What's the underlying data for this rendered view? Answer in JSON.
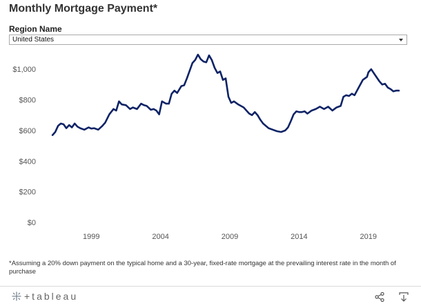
{
  "title": "Monthly Mortgage Payment*",
  "filter": {
    "label": "Region Name",
    "value": "United States"
  },
  "chart_data": {
    "type": "line",
    "title": "Monthly Mortgage Payment*",
    "xlabel": "",
    "ylabel": "",
    "y_ticks": [
      0,
      200,
      400,
      600,
      800,
      1000
    ],
    "y_tick_labels": [
      "$0",
      "$200",
      "$400",
      "$600",
      "$800",
      "$1,000"
    ],
    "x_ticks": [
      1999,
      2004,
      2009,
      2014,
      2019
    ],
    "xlim": [
      1995.3,
      2022.2
    ],
    "ylim": [
      0,
      1100
    ],
    "grid": false,
    "series": [
      {
        "color": "#0d2366",
        "x": [
          1996.2,
          1996.4,
          1996.6,
          1996.8,
          1997.0,
          1997.2,
          1997.4,
          1997.6,
          1997.8,
          1998.0,
          1998.2,
          1998.5,
          1998.8,
          1999.0,
          1999.2,
          1999.5,
          1999.8,
          2000.0,
          2000.3,
          2000.6,
          2000.8,
          2001.0,
          2001.2,
          2001.5,
          2001.8,
          2002.0,
          2002.3,
          2002.6,
          2002.8,
          2003.0,
          2003.3,
          2003.5,
          2003.7,
          2003.9,
          2004.1,
          2004.4,
          2004.6,
          2004.8,
          2005.0,
          2005.2,
          2005.5,
          2005.7,
          2005.9,
          2006.1,
          2006.3,
          2006.5,
          2006.7,
          2006.9,
          2007.1,
          2007.3,
          2007.5,
          2007.7,
          2007.9,
          2008.1,
          2008.3,
          2008.5,
          2008.7,
          2008.9,
          2009.1,
          2009.3,
          2009.6,
          2009.8,
          2010.0,
          2010.2,
          2010.4,
          2010.6,
          2010.8,
          2011.0,
          2011.2,
          2011.4,
          2011.6,
          2011.8,
          2012.1,
          2012.4,
          2012.7,
          2013.0,
          2013.2,
          2013.4,
          2013.6,
          2013.8,
          2014.0,
          2014.2,
          2014.4,
          2014.6,
          2014.9,
          2015.2,
          2015.5,
          2015.8,
          2016.1,
          2016.4,
          2016.7,
          2017.0,
          2017.2,
          2017.4,
          2017.6,
          2017.8,
          2018.0,
          2018.3,
          2018.6,
          2018.9,
          2019.0,
          2019.2,
          2019.5,
          2019.8,
          2020.0,
          2020.2,
          2020.4,
          2020.6,
          2020.8,
          2021.0,
          2021.2
        ],
        "y": [
          570,
          590,
          630,
          645,
          640,
          615,
          635,
          620,
          645,
          625,
          615,
          605,
          620,
          612,
          615,
          605,
          630,
          650,
          705,
          740,
          730,
          790,
          770,
          765,
          740,
          750,
          740,
          775,
          765,
          760,
          735,
          740,
          730,
          705,
          790,
          775,
          775,
          840,
          860,
          845,
          890,
          895,
          940,
          990,
          1040,
          1060,
          1095,
          1065,
          1050,
          1045,
          1090,
          1060,
          1010,
          975,
          985,
          930,
          940,
          820,
          780,
          790,
          770,
          760,
          750,
          730,
          710,
          700,
          720,
          700,
          670,
          645,
          630,
          615,
          605,
          595,
          590,
          600,
          620,
          660,
          705,
          725,
          720,
          720,
          725,
          710,
          730,
          740,
          755,
          740,
          755,
          730,
          750,
          760,
          820,
          830,
          825,
          840,
          830,
          880,
          930,
          950,
          980,
          1000,
          960,
          920,
          900,
          905,
          880,
          870,
          855,
          860,
          860
        ]
      }
    ]
  },
  "footnote": "*Assuming a 20% down payment on the typical home and a 30-year, fixed-rate mortgage at the prevailing interest rate in the month of purchase",
  "toolbar": {
    "brand": "+tableau"
  },
  "colors": {
    "line": "#0d2366",
    "text": "#333333",
    "axis_text": "#555555"
  },
  "icons": [
    "tableau-logo-icon",
    "share-icon",
    "download-icon",
    "chevron-down-icon"
  ]
}
